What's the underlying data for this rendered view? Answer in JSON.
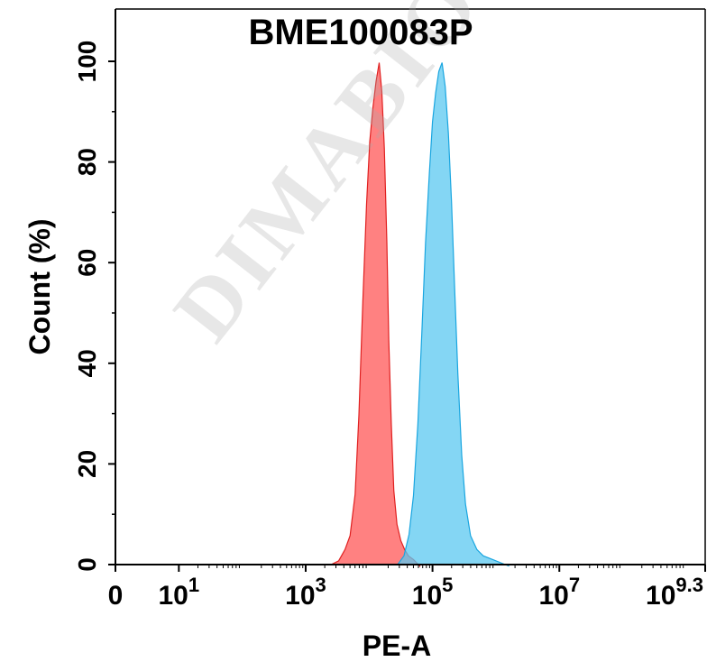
{
  "chart_data": {
    "type": "area",
    "title": "BME100083P",
    "xlabel": "PE-A",
    "ylabel": "Count (%)",
    "x_scale": "biexponential-log",
    "xlim": [
      0,
      9.3
    ],
    "ylim": [
      0,
      100
    ],
    "x_ticks": [
      {
        "value": 0,
        "base": "0",
        "exp": ""
      },
      {
        "value": 1,
        "base": "10",
        "exp": "1"
      },
      {
        "value": 3,
        "base": "10",
        "exp": "3"
      },
      {
        "value": 5,
        "base": "10",
        "exp": "5"
      },
      {
        "value": 7,
        "base": "10",
        "exp": "7"
      },
      {
        "value": 9.3,
        "base": "10",
        "exp": "9.3"
      }
    ],
    "y_ticks": [
      0,
      20,
      40,
      60,
      80,
      100
    ],
    "grid": false,
    "series": [
      {
        "color_fill": "#ff6b6b",
        "color_line": "#e02020",
        "x_log10": [
          3.4,
          3.52,
          3.62,
          3.7,
          3.78,
          3.84,
          3.9,
          3.96,
          4.01,
          4.06,
          4.11,
          4.16,
          4.2,
          4.24,
          4.28,
          4.31,
          4.35,
          4.39,
          4.44,
          4.5,
          4.56,
          4.62,
          4.7,
          4.8
        ],
        "y": [
          0,
          1,
          3,
          6,
          14,
          30,
          52,
          72,
          84,
          91,
          96,
          100,
          94,
          83,
          64,
          45,
          28,
          15,
          8,
          5,
          3,
          2,
          1,
          0
        ]
      },
      {
        "color_fill": "#5bc8f0",
        "color_line": "#1aa6e0",
        "x_log10": [
          4.45,
          4.55,
          4.63,
          4.7,
          4.77,
          4.83,
          4.89,
          4.95,
          5.0,
          5.05,
          5.1,
          5.15,
          5.2,
          5.25,
          5.3,
          5.35,
          5.4,
          5.46,
          5.52,
          5.6,
          5.7,
          5.8,
          5.95,
          6.2
        ],
        "y": [
          0,
          2,
          6,
          14,
          28,
          46,
          64,
          78,
          88,
          94,
          98,
          100,
          95,
          86,
          72,
          55,
          38,
          22,
          12,
          6,
          3,
          2,
          1,
          0
        ]
      }
    ]
  },
  "watermark": "DIMABIO CON"
}
